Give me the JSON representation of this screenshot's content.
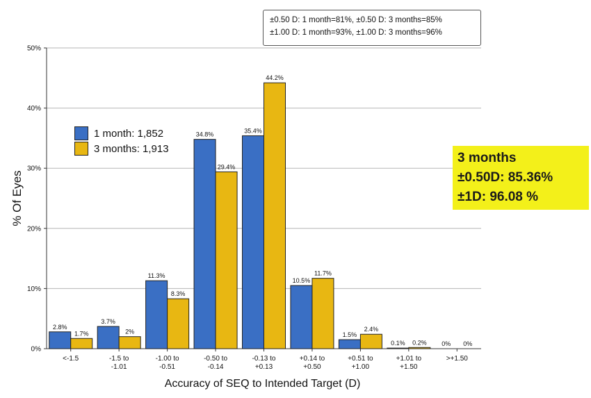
{
  "summary_box": {
    "line1": "±0.50 D: 1 month=81%, ±0.50 D: 3 months=85%",
    "line2": "±1.00 D: 1 month=93%, ±1.00 D: 3 months=96%"
  },
  "callout": {
    "line1": "3 months",
    "line2": "±0.50D: 85.36%",
    "line3": "±1D: 96.08 %",
    "background": "#f3f01a"
  },
  "legend": {
    "items": [
      {
        "label": "1 month: 1,852",
        "color": "#3a6fc4"
      },
      {
        "label": "3 months: 1,913",
        "color": "#e8b712"
      }
    ]
  },
  "chart_data": {
    "type": "bar",
    "title": "",
    "xlabel": "Accuracy of SEQ to Intended Target (D)",
    "ylabel": "% Of Eyes",
    "ylim": [
      0,
      50
    ],
    "yticks": [
      "0%",
      "10%",
      "20%",
      "30%",
      "40%",
      "50%"
    ],
    "grid": true,
    "legend_position": "upper-left",
    "categories": [
      [
        "<-1.5"
      ],
      [
        "-1.5 to",
        "-1.01"
      ],
      [
        "-1.00 to",
        "-0.51"
      ],
      [
        "-0.50 to",
        "-0.14"
      ],
      [
        "-0.13 to",
        "+0.13"
      ],
      [
        "+0.14 to",
        "+0.50"
      ],
      [
        "+0.51 to",
        "+1.00"
      ],
      [
        "+1.01 to",
        "+1.50"
      ],
      [
        ">+1.50"
      ]
    ],
    "series": [
      {
        "name": "1 month: 1,852",
        "color": "#3a6fc4",
        "values": [
          2.8,
          3.7,
          11.3,
          34.8,
          35.4,
          10.5,
          1.5,
          0.1,
          0
        ],
        "labels": [
          "2.8%",
          "3.7%",
          "11.3%",
          "34.8%",
          "35.4%",
          "10.5%",
          "1.5%",
          "0.1%",
          "0%"
        ]
      },
      {
        "name": "3 months: 1,913",
        "color": "#e8b712",
        "values": [
          1.7,
          2,
          8.3,
          29.4,
          44.2,
          11.7,
          2.4,
          0.2,
          0
        ],
        "labels": [
          "1.7%",
          "2%",
          "8.3%",
          "29.4%",
          "44.2%",
          "11.7%",
          "2.4%",
          "0.2%",
          "0%"
        ]
      }
    ]
  }
}
